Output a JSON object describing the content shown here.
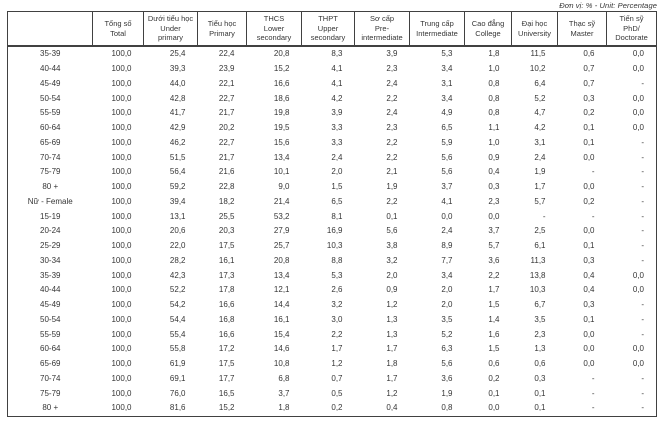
{
  "unit_note": "Đơn vị: % - Unit: Percentage",
  "table": {
    "columns": [
      {
        "lines": []
      },
      {
        "lines": [
          "Tổng số",
          "Total"
        ]
      },
      {
        "lines": [
          "Dưới tiểu học",
          "Under",
          "primary"
        ]
      },
      {
        "lines": [
          "Tiểu học",
          "Primary"
        ]
      },
      {
        "lines": [
          "THCS",
          "Lower",
          "secondary"
        ]
      },
      {
        "lines": [
          "THPT",
          "Upper",
          "secondary"
        ]
      },
      {
        "lines": [
          "Sơ cấp",
          "Pre-",
          "intermediate"
        ]
      },
      {
        "lines": [
          "Trung cấp",
          "Intermediate"
        ]
      },
      {
        "lines": [
          "Cao đẳng",
          "College"
        ]
      },
      {
        "lines": [
          "Đại học",
          "University"
        ]
      },
      {
        "lines": [
          "Thạc sỹ",
          "Master"
        ]
      },
      {
        "lines": [
          "Tiến sỹ",
          "PhD/",
          "Doctorate"
        ]
      }
    ],
    "rows": [
      {
        "label": "35-39",
        "values": [
          "100,0",
          "25,4",
          "22,4",
          "20,8",
          "8,3",
          "3,9",
          "5,3",
          "1,8",
          "11,5",
          "0,6",
          "0,0"
        ]
      },
      {
        "label": "40-44",
        "values": [
          "100,0",
          "39,3",
          "23,9",
          "15,2",
          "4,1",
          "2,3",
          "3,4",
          "1,0",
          "10,2",
          "0,7",
          "0,0"
        ]
      },
      {
        "label": "45-49",
        "values": [
          "100,0",
          "44,0",
          "22,1",
          "16,6",
          "4,1",
          "2,4",
          "3,1",
          "0,8",
          "6,4",
          "0,7",
          "-"
        ]
      },
      {
        "label": "50-54",
        "values": [
          "100,0",
          "42,8",
          "22,7",
          "18,6",
          "4,2",
          "2,2",
          "3,4",
          "0,8",
          "5,2",
          "0,3",
          "0,0"
        ]
      },
      {
        "label": "55-59",
        "values": [
          "100,0",
          "41,7",
          "21,7",
          "19,8",
          "3,9",
          "2,4",
          "4,9",
          "0,8",
          "4,7",
          "0,2",
          "0,0"
        ]
      },
      {
        "label": "60-64",
        "values": [
          "100,0",
          "42,9",
          "20,2",
          "19,5",
          "3,3",
          "2,3",
          "6,5",
          "1,1",
          "4,2",
          "0,1",
          "0,0"
        ]
      },
      {
        "label": "65-69",
        "values": [
          "100,0",
          "46,2",
          "22,7",
          "15,6",
          "3,3",
          "2,2",
          "5,9",
          "1,0",
          "3,1",
          "0,1",
          "-"
        ]
      },
      {
        "label": "70-74",
        "values": [
          "100,0",
          "51,5",
          "21,7",
          "13,4",
          "2,4",
          "2,2",
          "5,6",
          "0,9",
          "2,4",
          "0,0",
          "-"
        ]
      },
      {
        "label": "75-79",
        "values": [
          "100,0",
          "56,4",
          "21,6",
          "10,1",
          "2,0",
          "2,1",
          "5,6",
          "0,4",
          "1,9",
          "-",
          "-"
        ]
      },
      {
        "label": "80 +",
        "values": [
          "100,0",
          "59,2",
          "22,8",
          "9,0",
          "1,5",
          "1,9",
          "3,7",
          "0,3",
          "1,7",
          "0,0",
          "-"
        ]
      },
      {
        "label": "Nữ - Female",
        "group": true,
        "values": [
          "100,0",
          "39,4",
          "18,2",
          "21,4",
          "6,5",
          "2,2",
          "4,1",
          "2,3",
          "5,7",
          "0,2",
          "-"
        ]
      },
      {
        "label": "15-19",
        "values": [
          "100,0",
          "13,1",
          "25,5",
          "53,2",
          "8,1",
          "0,1",
          "0,0",
          "0,0",
          "-",
          "-",
          "-"
        ]
      },
      {
        "label": "20-24",
        "values": [
          "100,0",
          "20,6",
          "20,3",
          "27,9",
          "16,9",
          "5,6",
          "2,4",
          "3,7",
          "2,5",
          "0,0",
          "-"
        ]
      },
      {
        "label": "25-29",
        "values": [
          "100,0",
          "22,0",
          "17,5",
          "25,7",
          "10,3",
          "3,8",
          "8,9",
          "5,7",
          "6,1",
          "0,1",
          "-"
        ]
      },
      {
        "label": "30-34",
        "values": [
          "100,0",
          "28,2",
          "16,1",
          "20,8",
          "8,8",
          "3,2",
          "7,7",
          "3,6",
          "11,3",
          "0,3",
          "-"
        ]
      },
      {
        "label": "35-39",
        "values": [
          "100,0",
          "42,3",
          "17,3",
          "13,4",
          "5,3",
          "2,0",
          "3,4",
          "2,2",
          "13,8",
          "0,4",
          "0,0"
        ]
      },
      {
        "label": "40-44",
        "values": [
          "100,0",
          "52,2",
          "17,8",
          "12,1",
          "2,6",
          "0,9",
          "2,0",
          "1,7",
          "10,3",
          "0,4",
          "0,0"
        ]
      },
      {
        "label": "45-49",
        "values": [
          "100,0",
          "54,2",
          "16,6",
          "14,4",
          "3,2",
          "1,2",
          "2,0",
          "1,5",
          "6,7",
          "0,3",
          "-"
        ]
      },
      {
        "label": "50-54",
        "values": [
          "100,0",
          "54,4",
          "16,8",
          "16,1",
          "3,0",
          "1,3",
          "3,5",
          "1,4",
          "3,5",
          "0,1",
          "-"
        ]
      },
      {
        "label": "55-59",
        "values": [
          "100,0",
          "55,4",
          "16,6",
          "15,4",
          "2,2",
          "1,3",
          "5,2",
          "1,6",
          "2,3",
          "0,0",
          "-"
        ]
      },
      {
        "label": "60-64",
        "values": [
          "100,0",
          "55,8",
          "17,2",
          "14,6",
          "1,7",
          "1,7",
          "6,3",
          "1,5",
          "1,3",
          "0,0",
          "0,0"
        ]
      },
      {
        "label": "65-69",
        "values": [
          "100,0",
          "61,9",
          "17,5",
          "10,8",
          "1,2",
          "1,8",
          "5,6",
          "0,6",
          "0,6",
          "0,0",
          "0,0"
        ]
      },
      {
        "label": "70-74",
        "values": [
          "100,0",
          "69,1",
          "17,7",
          "6,8",
          "0,7",
          "1,7",
          "3,6",
          "0,2",
          "0,3",
          "-",
          "-"
        ]
      },
      {
        "label": "75-79",
        "values": [
          "100,0",
          "76,0",
          "16,5",
          "3,7",
          "0,5",
          "1,2",
          "1,9",
          "0,1",
          "0,1",
          "-",
          "-"
        ]
      },
      {
        "label": "80 +",
        "values": [
          "100,0",
          "81,6",
          "15,2",
          "1,8",
          "0,2",
          "0,4",
          "0,8",
          "0,0",
          "0,1",
          "-",
          "-"
        ]
      }
    ]
  }
}
